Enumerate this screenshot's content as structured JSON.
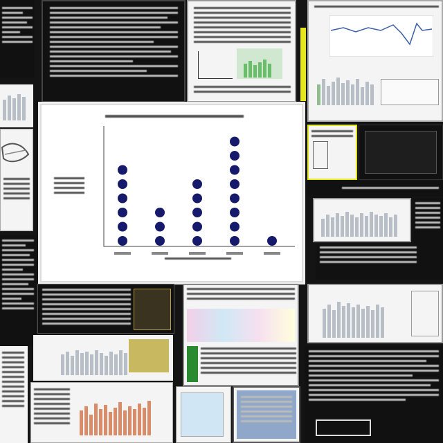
{
  "chart_data": {
    "type": "scatter",
    "title": "",
    "xlabel": "",
    "ylabel": "",
    "categories": [
      "A",
      "B",
      "C",
      "D",
      "E"
    ],
    "values": [
      6,
      3,
      5,
      8,
      1
    ],
    "marker_color": "#161a6b"
  },
  "colors": {
    "background": "#141414",
    "dark_tile": "#111111",
    "light_tile": "#f4f4f4",
    "accent_yellow": "#e5e520",
    "bar_gray": "#b7bec6",
    "bar_orange": "#d98c6a",
    "line_blue": "#3b5ea8"
  }
}
